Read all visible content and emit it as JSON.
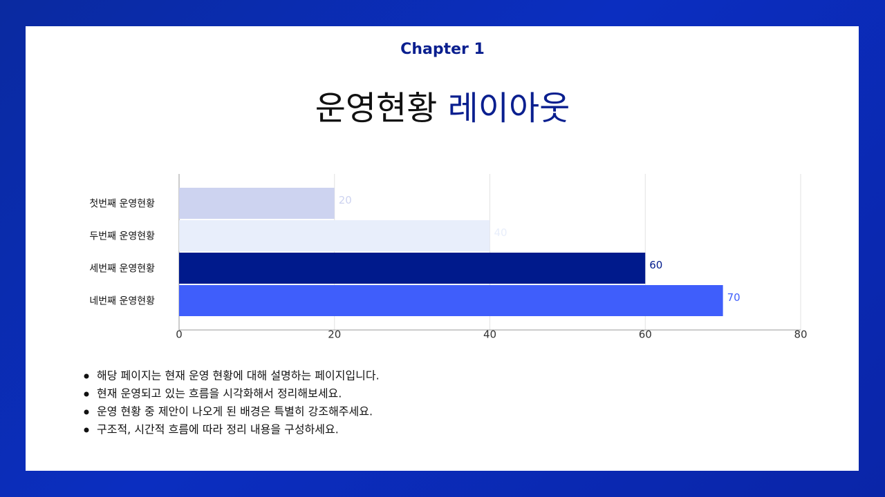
{
  "chapter": "Chapter 1",
  "title": {
    "main": "운영현황",
    "accent": "레이아웃"
  },
  "bullets": [
    "해당 페이지는 현재 운영 현황에 대해 설명하는 페이지입니다.",
    "현재 운영되고 있는 흐름을 시각화해서 정리해보세요.",
    "운영 현황 중 제안이 나오게 된 배경은 특별히 강조해주세요.",
    "구조적, 시간적 흐름에 따라 정리 내용을 구성하세요."
  ],
  "chart_data": {
    "type": "hbar",
    "categories": [
      "첫번째 운영현황",
      "두번째 운영현황",
      "세번째 운영현황",
      "네번째 운영현황"
    ],
    "values": [
      20,
      40,
      60,
      70
    ],
    "colors": [
      "#cdd3f0",
      "#e8eefb",
      "#001a8c",
      "#3f5efb"
    ],
    "xlim": [
      0,
      80
    ],
    "xticks": [
      0,
      20,
      40,
      60,
      80
    ],
    "grid": true
  }
}
